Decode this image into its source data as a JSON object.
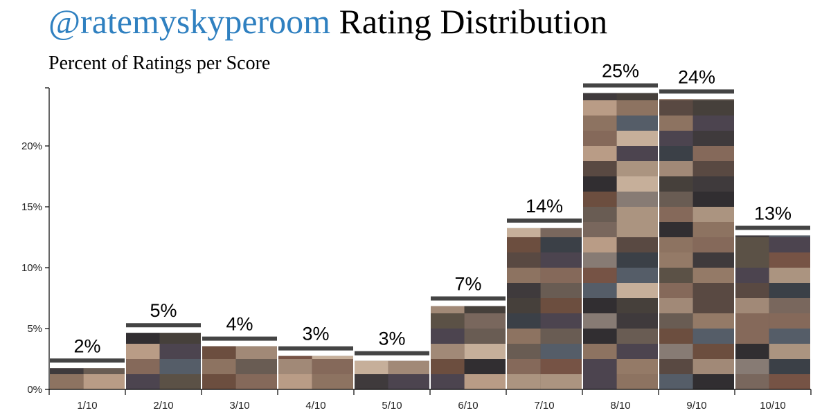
{
  "header": {
    "handle": "@ratemyskyperoom",
    "title_rest": " Rating Distribution",
    "subtitle": "Percent of Ratings per Score"
  },
  "chart_data": {
    "type": "bar",
    "title": "@ratemyskyperoom Rating Distribution",
    "subtitle": "Percent of Ratings per Score",
    "categories": [
      "1/10",
      "2/10",
      "3/10",
      "4/10",
      "5/10",
      "6/10",
      "7/10",
      "8/10",
      "9/10",
      "10/10"
    ],
    "values": [
      2.2,
      5.1,
      4.0,
      3.2,
      2.8,
      7.3,
      13.7,
      24.8,
      24.3,
      13.1
    ],
    "data_labels": [
      "2%",
      "5%",
      "4%",
      "3%",
      "3%",
      "7%",
      "14%",
      "25%",
      "24%",
      "13%"
    ],
    "y_ticks": [
      0,
      5,
      10,
      15,
      20
    ],
    "y_tick_labels": [
      "0%",
      "5%",
      "10%",
      "15%",
      "20%"
    ],
    "ylim": [
      0,
      24.8
    ],
    "grid": false,
    "bar_fill": "photo-mosaic",
    "cap_color": "#444444",
    "xlabel": "",
    "ylabel": ""
  }
}
